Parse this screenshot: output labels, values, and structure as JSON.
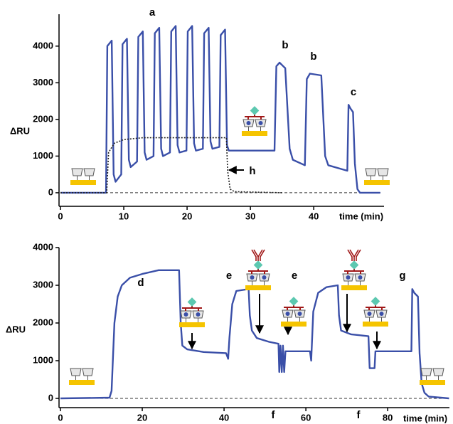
{
  "chart_data": [
    {
      "type": "line",
      "y_label": "ΔRU",
      "x_label": "time (min)",
      "xlim": [
        0,
        51.1
      ],
      "ylim": [
        -370,
        4870
      ],
      "xticks": [
        0,
        10,
        20,
        30,
        40
      ],
      "yticks": [
        0,
        1000,
        2000,
        3000,
        4000
      ],
      "hline": 0,
      "annotations": [
        "a",
        "b",
        "b",
        "c",
        "h"
      ],
      "series": [
        {
          "color": "#3a4fa8",
          "style": "solid",
          "x": [
            0,
            7,
            7.2,
            7.4,
            8.1,
            8.4,
            8.7,
            9.6,
            9.8,
            10.5,
            10.8,
            11.1,
            12.1,
            12.3,
            13,
            13.3,
            13.6,
            14.7,
            14.9,
            15.6,
            15.9,
            16.2,
            17.3,
            17.5,
            18.2,
            18.5,
            18.8,
            19.9,
            20.1,
            20.8,
            21.1,
            21.4,
            22.5,
            22.7,
            23.4,
            23.7,
            24,
            25.1,
            25.3,
            26,
            26.3,
            26.6,
            33.8,
            34.1,
            34.6,
            35.2,
            35.5,
            36.2,
            36.7,
            38.6,
            38.9,
            39.4,
            41.2,
            41.8,
            42.3,
            45.3,
            45.5,
            45.8,
            46.2,
            46.5,
            46.9,
            47.3,
            50.5
          ],
          "values": [
            0,
            0,
            0,
            4000,
            4150,
            500,
            300,
            500,
            4050,
            4200,
            900,
            700,
            850,
            4250,
            4400,
            1100,
            900,
            1000,
            4350,
            4500,
            1200,
            1000,
            1100,
            4400,
            4550,
            1300,
            1100,
            1150,
            4400,
            4550,
            1350,
            1150,
            1200,
            4350,
            4500,
            1400,
            1200,
            1250,
            4300,
            4450,
            1300,
            1150,
            1150,
            3450,
            3550,
            3450,
            3400,
            1200,
            900,
            750,
            3100,
            3250,
            3200,
            1000,
            750,
            600,
            2400,
            2300,
            2200,
            800,
            100,
            0,
            0
          ]
        },
        {
          "color": "#222222",
          "style": "dotted",
          "x": [
            0,
            7.3,
            7.6,
            8.5,
            10,
            13,
            26.2,
            26.4,
            26.8,
            27.5,
            35
          ],
          "values": [
            0,
            0,
            1100,
            1350,
            1450,
            1500,
            1500,
            600,
            100,
            30,
            0
          ]
        }
      ]
    },
    {
      "type": "line",
      "y_label": "ΔRU",
      "x_label": "time (min)",
      "xlim": [
        0,
        95.1
      ],
      "ylim": [
        -245,
        4000
      ],
      "xticks": [
        0,
        20,
        40,
        60,
        80
      ],
      "yticks": [
        0,
        1000,
        2000,
        3000,
        4000
      ],
      "hline": 0,
      "annotations": [
        "d",
        "e",
        "f",
        "e",
        "f",
        "g"
      ],
      "series": [
        {
          "color": "#3a4fa8",
          "style": "solid",
          "x": [
            0,
            12,
            12.5,
            13.2,
            14,
            15,
            17,
            20,
            24,
            29,
            29.4,
            29.8,
            31,
            35,
            40.5,
            41,
            41.3,
            42,
            43,
            46,
            46.3,
            46.8,
            48,
            51,
            53.3,
            53.5,
            53.8,
            54.1,
            54.4,
            54.7,
            55,
            61,
            61.3,
            61.8,
            63,
            65,
            67.8,
            68.1,
            68.6,
            71,
            75.3,
            75.6,
            76.8,
            77,
            85.8,
            86,
            86.5,
            87.4,
            87.8,
            88.3,
            89,
            90,
            95
          ],
          "values": [
            0,
            20,
            200,
            2000,
            2700,
            3000,
            3200,
            3300,
            3400,
            3400,
            2000,
            1400,
            1300,
            1230,
            1200,
            1050,
            1600,
            2500,
            2850,
            2900,
            2200,
            1800,
            1600,
            1500,
            1450,
            700,
            1400,
            700,
            1400,
            700,
            1250,
            1250,
            1000,
            2300,
            2800,
            2950,
            3000,
            2200,
            1800,
            1700,
            1650,
            800,
            800,
            1250,
            1250,
            2900,
            2800,
            2700,
            1200,
            400,
            150,
            50,
            0
          ]
        }
      ]
    }
  ]
}
